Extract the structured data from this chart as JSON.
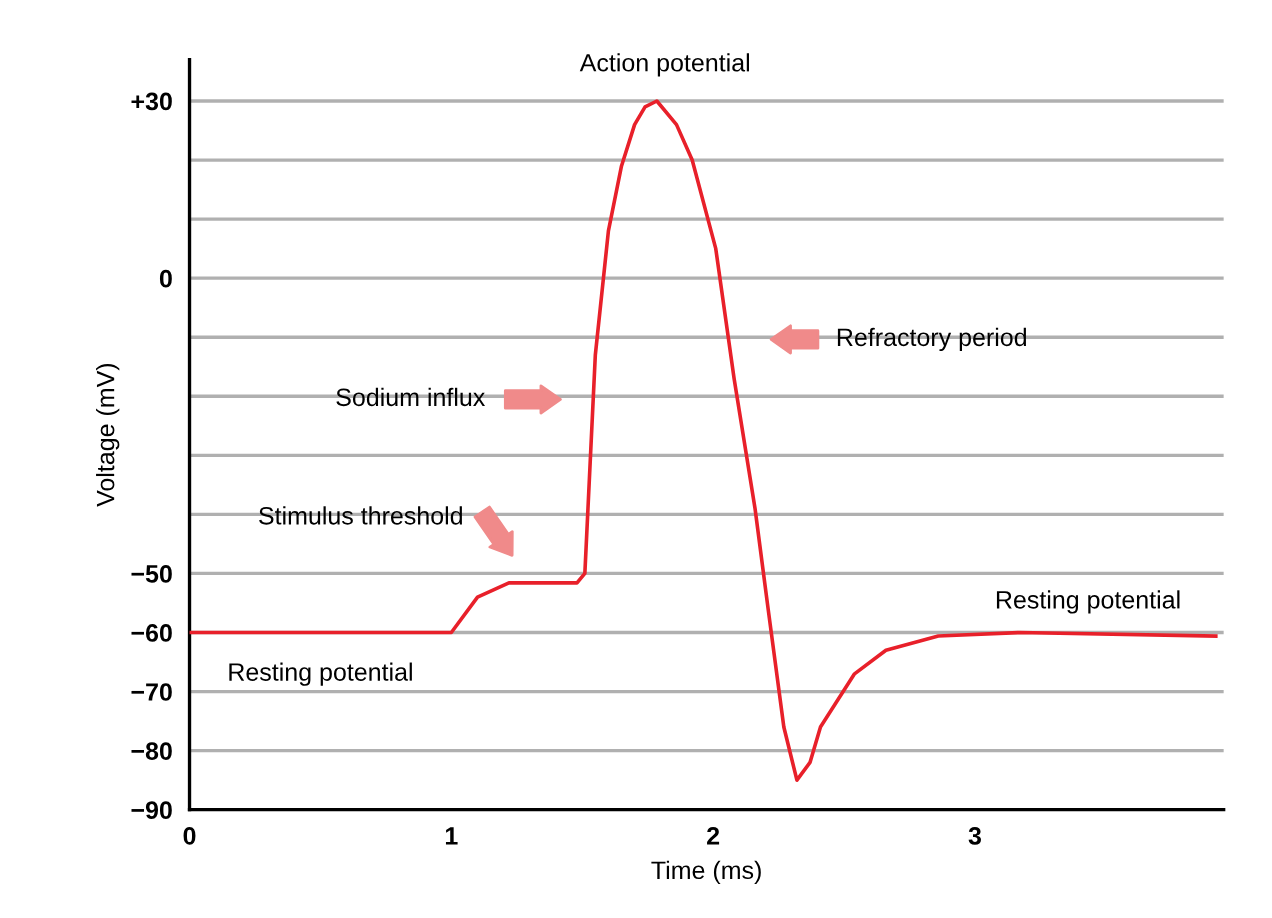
{
  "chart_data": {
    "type": "line",
    "xlabel": "Time (ms)",
    "ylabel": "Voltage (mV)",
    "x": [
      0,
      1.0,
      1.1,
      1.22,
      1.48,
      1.51,
      1.55,
      1.6,
      1.65,
      1.7,
      1.74,
      1.785,
      1.86,
      1.92,
      2.01,
      2.08,
      2.16,
      2.21,
      2.27,
      2.32,
      2.37,
      2.41,
      2.54,
      2.66,
      2.86,
      3.17,
      3.92
    ],
    "series": [
      {
        "color": "#e8202a",
        "values": [
          -60,
          -60,
          -54,
          -51.6,
          -51.6,
          -50,
          -13,
          8,
          19,
          26,
          29,
          30,
          26,
          20,
          5,
          -17,
          -39,
          -56,
          -76,
          -85,
          -82,
          -76,
          -67,
          -63,
          -60.6,
          -60,
          -60.6
        ]
      }
    ],
    "xlim": [
      0,
      3.95
    ],
    "xticks": [
      0,
      1,
      2,
      3
    ],
    "ylim": [
      -90,
      37
    ],
    "yticks": [
      {
        "value": 30,
        "label": "+30"
      },
      {
        "value": 20,
        "label": null
      },
      {
        "value": 10,
        "label": null
      },
      0,
      {
        "value": -10,
        "label": null
      },
      {
        "value": -20,
        "label": null
      },
      {
        "value": -30,
        "label": null
      },
      {
        "value": -40,
        "label": null
      },
      {
        "value": -50,
        "label": "−50"
      },
      {
        "value": -60,
        "label": "−60"
      },
      {
        "value": -70,
        "label": "−70"
      },
      {
        "value": -80,
        "label": "−80"
      },
      {
        "value": -90,
        "label": "−90"
      }
    ],
    "grid": "y",
    "marker": "none",
    "line_style": "solid",
    "legend": false,
    "annotations": [
      {
        "text": "Action potential",
        "x": 1.785,
        "y": 30
      },
      "Refractory period",
      "Sodium influx",
      "Stimulus threshold",
      {
        "text": "Resting potential",
        "x": 0.5,
        "y": -60
      },
      {
        "text": "Resting potential",
        "x": 3.4,
        "y": -60
      }
    ]
  }
}
